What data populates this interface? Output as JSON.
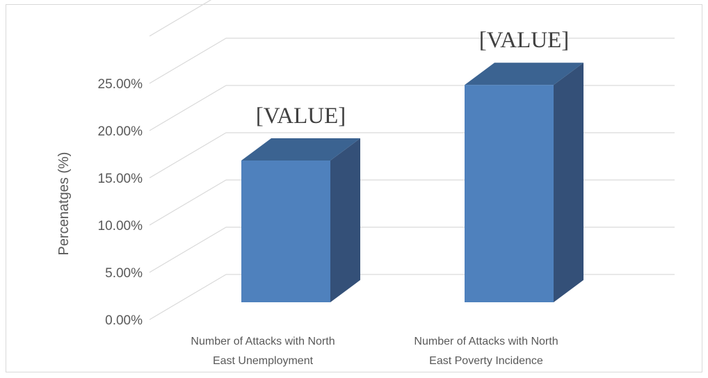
{
  "chart_data": {
    "type": "bar",
    "three_d": true,
    "categories": [
      [
        "Number of Attacks with North",
        "East Unemployment"
      ],
      [
        "Number of Attacks with North",
        "East Poverty Incidence"
      ]
    ],
    "series": [
      {
        "values": [
          0.15,
          0.23
        ],
        "data_labels": [
          "[VALUE]",
          "[VALUE]"
        ]
      }
    ],
    "ylabel": "Percenatges (%)",
    "ylim": [
      0,
      0.25
    ],
    "yticks": [
      0,
      0.05,
      0.1,
      0.15,
      0.2,
      0.25
    ],
    "ytick_labels": [
      "0.00%",
      "5.00%",
      "10.00%",
      "15.00%",
      "20.00%",
      "25.00%"
    ],
    "grid": true,
    "legend": "none",
    "colors": {
      "bar_front": "#4f81bd",
      "bar_top": "#3b6391",
      "bar_side": "#345078",
      "grid": "#d9d9d9",
      "text": "#595959"
    }
  }
}
